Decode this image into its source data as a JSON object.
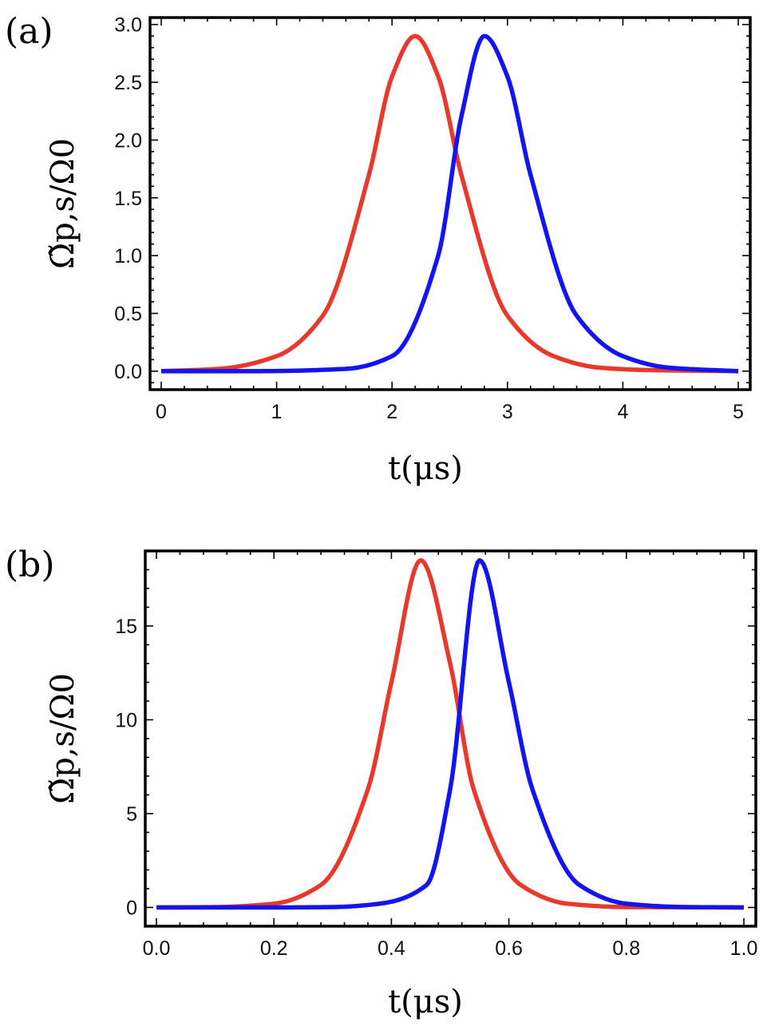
{
  "chart_data": [
    {
      "type": "line",
      "panel_label": "(a)",
      "xlabel": "t(μs)",
      "ylabel": "Ω̃p,s/Ω0",
      "xlim": [
        0,
        5
      ],
      "ylim": [
        -0.16,
        3.06
      ],
      "x_ticks": [
        0,
        1,
        2,
        3,
        4,
        5
      ],
      "x_tick_labels": [
        "0",
        "1",
        "2",
        "3",
        "4",
        "5"
      ],
      "y_ticks": [
        0,
        0.5,
        1,
        1.5,
        2,
        2.5,
        3
      ],
      "y_tick_labels": [
        "0.0",
        "0.5",
        "1.0",
        "1.5",
        "2.0",
        "2.5",
        "3.0"
      ],
      "series": [
        {
          "name": "red",
          "color": "#e8392d",
          "x": [
            0,
            0.5,
            1.0,
            1.4,
            1.8,
            2.0,
            2.2,
            2.4,
            2.6,
            3.0,
            3.4,
            3.8,
            4.2,
            5.0
          ],
          "y": [
            0.0,
            0.02,
            0.13,
            0.48,
            1.7,
            2.55,
            2.9,
            2.55,
            1.7,
            0.48,
            0.13,
            0.03,
            0.01,
            0.0
          ]
        },
        {
          "name": "blue",
          "color": "#1414f0",
          "x": [
            0,
            0.8,
            1.6,
            2.0,
            2.4,
            2.6,
            2.8,
            3.0,
            3.2,
            3.6,
            4.0,
            4.4,
            5.0
          ],
          "y": [
            0.0,
            0.0,
            0.02,
            0.13,
            1.0,
            2.2,
            2.9,
            2.55,
            1.7,
            0.48,
            0.13,
            0.03,
            0.0
          ]
        }
      ]
    },
    {
      "type": "line",
      "panel_label": "(b)",
      "xlabel": "t(μs)",
      "ylabel": "Ω̃p,s/Ω0",
      "xlim": [
        0,
        1
      ],
      "ylim": [
        -1.0,
        19.0
      ],
      "x_ticks": [
        0,
        0.2,
        0.4,
        0.6,
        0.8,
        1.0
      ],
      "x_tick_labels": [
        "0.0",
        "0.2",
        "0.4",
        "0.6",
        "0.8",
        "1.0"
      ],
      "y_ticks": [
        0,
        5,
        10,
        15
      ],
      "y_tick_labels": [
        "0",
        "5",
        "10",
        "15"
      ],
      "series": [
        {
          "name": "red",
          "color": "#e8392d",
          "x": [
            0,
            0.1,
            0.2,
            0.28,
            0.36,
            0.4,
            0.45,
            0.5,
            0.54,
            0.62,
            0.7,
            0.8,
            1.0
          ],
          "y": [
            0.0,
            0.02,
            0.2,
            1.2,
            6.3,
            12.0,
            18.5,
            13.0,
            6.3,
            1.2,
            0.2,
            0.02,
            0.0
          ]
        },
        {
          "name": "blue",
          "color": "#1414f0",
          "x": [
            0,
            0.2,
            0.3,
            0.38,
            0.46,
            0.5,
            0.55,
            0.6,
            0.64,
            0.72,
            0.8,
            0.9,
            1.0
          ],
          "y": [
            0.0,
            0.0,
            0.02,
            0.2,
            1.2,
            6.3,
            18.5,
            12.0,
            6.3,
            1.2,
            0.2,
            0.02,
            0.0
          ]
        }
      ]
    }
  ]
}
